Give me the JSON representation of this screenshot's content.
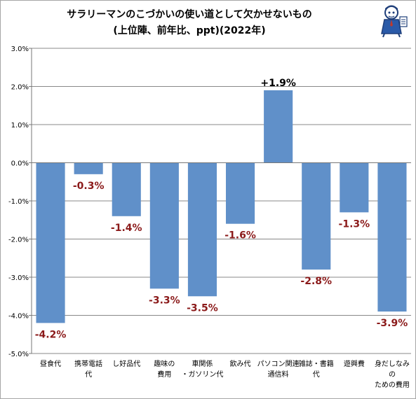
{
  "chart_data": {
    "type": "bar",
    "title": "サラリーマンのこづかいの使い道として欠かせないもの",
    "subtitle": "(上位陣、前年比、ppt)(2022年)",
    "categories": [
      [
        "昼食代"
      ],
      [
        "携帯電話",
        "代"
      ],
      [
        "し好品代"
      ],
      [
        "趣味の",
        "費用"
      ],
      [
        "車関係",
        "・ガソリン代"
      ],
      [
        "飲み代"
      ],
      [
        "パソコン関連",
        "通信料"
      ],
      [
        "雑誌・書籍",
        "代"
      ],
      [
        "遊興費"
      ],
      [
        "身だしなみ",
        "の",
        "ための費用"
      ]
    ],
    "values": [
      -4.2,
      -0.3,
      -1.4,
      -3.3,
      -3.5,
      -1.6,
      1.9,
      -2.8,
      -1.3,
      -3.9
    ],
    "data_labels": [
      "-4.2%",
      "-0.3%",
      "-1.4%",
      "-3.3%",
      "-3.5%",
      "-1.6%",
      "+1.9%",
      "-2.8%",
      "-1.3%",
      "-3.9%"
    ],
    "yticks": [
      "3.0%",
      "2.0%",
      "1.0%",
      "0.0%",
      "-1.0%",
      "-2.0%",
      "-3.0%",
      "-4.0%",
      "-5.0%"
    ],
    "ylim": [
      -5.0,
      3.0
    ],
    "grid": true,
    "bar_color": "#6090c9",
    "negative_label_color": "#8b1a1a",
    "positive_label_color": "#000000"
  }
}
